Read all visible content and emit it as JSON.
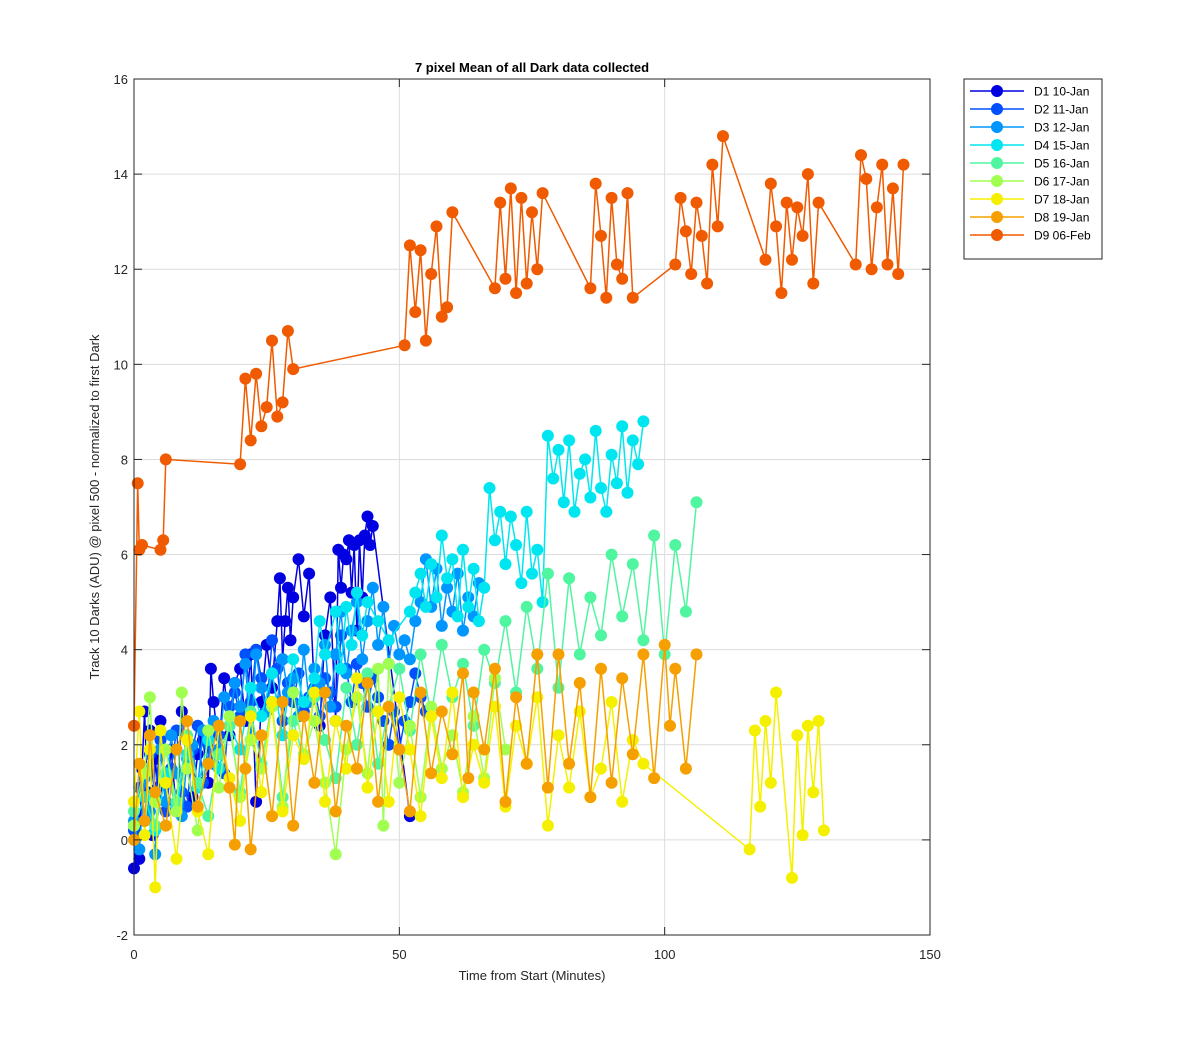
{
  "chart_data": {
    "type": "line",
    "title": "7 pixel Mean of all Dark data collected",
    "xlabel": "Time from Start (Minutes)",
    "ylabel": "Track 10 Darks (ADU) @ pixel 500 - normalized to first Dark",
    "xlim": [
      0,
      150
    ],
    "ylim": [
      -2,
      16
    ],
    "xticks": [
      0,
      50,
      100,
      150
    ],
    "yticks": [
      -2,
      0,
      2,
      4,
      6,
      8,
      10,
      12,
      14,
      16
    ],
    "grid": true,
    "legend_position": "outside-top-right",
    "series": [
      {
        "name": "D1 10-Jan",
        "color": "#0000e0",
        "x": [
          0,
          0.5,
          1,
          1.5,
          2,
          2.5,
          3,
          3.5,
          4,
          4.5,
          5,
          6,
          7,
          8,
          9,
          10,
          11,
          12,
          13,
          14,
          14.5,
          15,
          16,
          17,
          18,
          19,
          20,
          21,
          22,
          23,
          24,
          25,
          26,
          27,
          27.5,
          28,
          28.5,
          29,
          29.5,
          30,
          31,
          32,
          33,
          34,
          35,
          36,
          37,
          38,
          38.5,
          39,
          39.5,
          40,
          40.5,
          41,
          41.5,
          42,
          42.5,
          43,
          43.5,
          44,
          44.5,
          45,
          52
        ],
        "y": [
          -0.6,
          0.5,
          -0.4,
          1.5,
          2.7,
          1.0,
          2.3,
          0.1,
          1.7,
          1.1,
          2.5,
          0.8,
          1.9,
          0.6,
          2.7,
          1.5,
          0.9,
          1.8,
          2.1,
          1.2,
          3.6,
          2.9,
          1.9,
          3.4,
          2.2,
          3.3,
          3.6,
          2.5,
          3.9,
          0.8,
          2.9,
          4.1,
          3.2,
          4.6,
          5.5,
          3.8,
          4.6,
          5.3,
          4.2,
          5.1,
          5.9,
          4.7,
          5.6,
          3.1,
          2.4,
          4.3,
          5.1,
          2.5,
          6.1,
          5.3,
          6.0,
          5.9,
          6.3,
          5.2,
          6.2,
          4.4,
          6.3,
          5.1,
          6.4,
          6.8,
          6.2,
          6.6,
          0.5
        ]
      },
      {
        "name": "D2 11-Jan",
        "color": "#0050ff",
        "x": [
          0,
          1,
          2,
          3,
          4,
          5,
          6,
          7,
          8,
          9,
          10,
          11,
          12,
          13,
          14,
          15,
          16,
          17,
          18,
          19,
          20,
          21,
          22,
          23,
          24,
          25,
          26,
          27,
          28,
          29,
          30,
          31,
          32,
          33,
          34,
          35,
          36,
          37,
          38,
          39,
          40,
          41,
          42,
          43,
          44,
          45,
          46,
          47,
          48,
          49,
          50,
          51,
          52,
          53,
          54,
          55
        ],
        "y": [
          0.2,
          1.1,
          0.4,
          1.8,
          0.9,
          2.1,
          0.6,
          1.5,
          2.3,
          1.0,
          0.7,
          1.9,
          2.4,
          1.2,
          2.0,
          1.6,
          2.2,
          1.4,
          2.8,
          3.1,
          2.6,
          3.9,
          2.9,
          4.0,
          3.4,
          2.7,
          4.2,
          3.6,
          2.5,
          3.3,
          2.9,
          3.5,
          2.7,
          3.0,
          3.2,
          2.6,
          3.4,
          3.1,
          2.8,
          4.3,
          3.6,
          2.9,
          3.7,
          3.3,
          2.8,
          3.4,
          3.0,
          2.5,
          2.0,
          2.7,
          1.9,
          2.5,
          2.9,
          3.5,
          3.0,
          2.7
        ]
      },
      {
        "name": "D3 12-Jan",
        "color": "#0096ff",
        "x": [
          0,
          1,
          2,
          3,
          4,
          5,
          6,
          7,
          8,
          9,
          10,
          11,
          12,
          13,
          14,
          15,
          16,
          17,
          18,
          19,
          20,
          21,
          22,
          23,
          24,
          25,
          26,
          27,
          28,
          29,
          30,
          31,
          32,
          33,
          34,
          35,
          36,
          37,
          38,
          39,
          40,
          41,
          42,
          43,
          44,
          45,
          46,
          47,
          48,
          49,
          50,
          51,
          52,
          53,
          54,
          55,
          56,
          57,
          58,
          59,
          60,
          61,
          62,
          63,
          64,
          65
        ],
        "y": [
          0.4,
          -0.2,
          1.3,
          0.6,
          -0.3,
          1.9,
          0.8,
          2.2,
          1.4,
          0.5,
          1.7,
          2.0,
          1.1,
          2.3,
          1.6,
          2.5,
          1.9,
          3.0,
          2.4,
          3.3,
          2.8,
          3.7,
          2.1,
          3.9,
          3.2,
          2.7,
          3.5,
          2.9,
          3.8,
          3.1,
          3.4,
          2.6,
          4.0,
          2.9,
          3.6,
          3.3,
          4.1,
          2.8,
          3.9,
          4.8,
          3.5,
          4.4,
          5.0,
          3.8,
          4.6,
          5.3,
          4.1,
          4.9,
          3.7,
          4.5,
          3.9,
          4.2,
          3.8,
          4.6,
          5.0,
          5.9,
          4.9,
          5.7,
          4.5,
          5.3,
          4.8,
          5.6,
          4.4,
          5.1,
          4.7,
          5.4
        ]
      },
      {
        "name": "D4 15-Jan",
        "color": "#00e6f0",
        "x": [
          0,
          2,
          4,
          6,
          8,
          10,
          12,
          14,
          16,
          18,
          20,
          22,
          24,
          26,
          28,
          30,
          32,
          34,
          35,
          36,
          38,
          39,
          40,
          41,
          42,
          43,
          44,
          46,
          48,
          52,
          53,
          54,
          55,
          56,
          57,
          58,
          59,
          60,
          61,
          62,
          63,
          64,
          65,
          66,
          67,
          68,
          69,
          70,
          71,
          72,
          73,
          74,
          75,
          76,
          77,
          78,
          79,
          80,
          81,
          82,
          83,
          84,
          85,
          86,
          87,
          88,
          89,
          90,
          91,
          92,
          93,
          94,
          95,
          96
        ],
        "y": [
          0.3,
          0.9,
          0.2,
          1.4,
          0.7,
          1.8,
          1.1,
          2.1,
          1.5,
          2.4,
          1.9,
          3.2,
          2.6,
          3.5,
          2.2,
          3.8,
          2.9,
          3.4,
          4.6,
          3.9,
          4.8,
          3.6,
          4.9,
          4.1,
          5.2,
          4.3,
          5.0,
          4.6,
          4.2,
          4.8,
          5.2,
          5.6,
          4.9,
          5.8,
          5.1,
          6.4,
          5.5,
          5.9,
          4.7,
          6.1,
          4.9,
          5.7,
          4.6,
          5.3,
          7.4,
          6.3,
          6.9,
          5.8,
          6.8,
          6.2,
          5.4,
          6.9,
          5.6,
          6.1,
          5.0,
          8.5,
          7.6,
          8.2,
          7.1,
          8.4,
          6.9,
          7.7,
          8.0,
          7.2,
          8.6,
          7.4,
          6.9,
          8.1,
          7.5,
          8.7,
          7.3,
          8.4,
          7.9,
          8.8
        ]
      },
      {
        "name": "D5 16-Jan",
        "color": "#50f5a0",
        "x": [
          0,
          2,
          4,
          6,
          8,
          10,
          12,
          14,
          16,
          18,
          20,
          22,
          24,
          26,
          28,
          30,
          32,
          34,
          36,
          38,
          40,
          42,
          44,
          46,
          48,
          50,
          52,
          54,
          56,
          58,
          60,
          62,
          64,
          66,
          68,
          70,
          72,
          74,
          76,
          78,
          80,
          82,
          84,
          86,
          88,
          90,
          92,
          94,
          96,
          98,
          100,
          102,
          104,
          106
        ],
        "y": [
          0.6,
          1.5,
          0.3,
          1.9,
          0.8,
          2.2,
          1.2,
          0.5,
          1.8,
          2.4,
          1.0,
          2.7,
          1.6,
          2.9,
          0.9,
          2.5,
          1.7,
          3.0,
          2.1,
          1.3,
          3.2,
          2.0,
          3.5,
          1.6,
          2.8,
          3.6,
          2.3,
          3.9,
          2.6,
          4.1,
          3.0,
          3.7,
          2.4,
          4.0,
          3.3,
          4.6,
          3.1,
          4.9,
          3.6,
          5.6,
          3.2,
          5.5,
          3.9,
          5.1,
          4.3,
          6.0,
          4.7,
          5.8,
          4.2,
          6.4,
          3.9,
          6.2,
          4.8,
          7.1
        ]
      },
      {
        "name": "D6 17-Jan",
        "color": "#a0ff50",
        "x": [
          0,
          2,
          3,
          4,
          6,
          8,
          9,
          10,
          12,
          14,
          16,
          18,
          20,
          22,
          24,
          26,
          28,
          30,
          32,
          34,
          36,
          38,
          40,
          42,
          44,
          46,
          47,
          48,
          50,
          52,
          54,
          56,
          58,
          60,
          62,
          64,
          66,
          68,
          70
        ],
        "y": [
          0.3,
          1.4,
          3.0,
          0.8,
          1.9,
          0.6,
          3.1,
          1.5,
          0.2,
          2.3,
          1.1,
          2.6,
          0.9,
          2.1,
          1.5,
          2.8,
          0.7,
          3.1,
          1.8,
          2.5,
          1.2,
          -0.3,
          1.9,
          3.0,
          1.4,
          3.6,
          0.3,
          3.7,
          1.2,
          2.4,
          0.9,
          2.8,
          1.5,
          2.2,
          1.0,
          2.6,
          1.3,
          3.4,
          1.9
        ]
      },
      {
        "name": "D7 18-Jan",
        "color": "#f5f000",
        "x": [
          0,
          1,
          2,
          3,
          4,
          5,
          6,
          8,
          10,
          12,
          14,
          16,
          18,
          20,
          22,
          24,
          26,
          28,
          30,
          32,
          34,
          36,
          38,
          40,
          42,
          44,
          46,
          48,
          50,
          52,
          54,
          56,
          58,
          60,
          62,
          64,
          66,
          68,
          70,
          72,
          74,
          76,
          78,
          80,
          82,
          84,
          86,
          88,
          90,
          92,
          94,
          96,
          116,
          117,
          118,
          119,
          120,
          121,
          124,
          125,
          126,
          127,
          128,
          129,
          130
        ],
        "y": [
          0.8,
          2.7,
          0.1,
          1.9,
          -1.0,
          2.3,
          1.2,
          -0.4,
          2.1,
          0.6,
          -0.3,
          2.4,
          1.3,
          0.4,
          2.6,
          1.0,
          2.9,
          0.6,
          2.2,
          1.7,
          3.1,
          0.8,
          2.5,
          1.5,
          3.4,
          1.1,
          2.7,
          0.8,
          3.0,
          1.9,
          0.5,
          2.6,
          1.3,
          3.1,
          0.9,
          2.0,
          1.2,
          2.8,
          0.7,
          2.4,
          1.6,
          3.0,
          0.3,
          2.2,
          1.1,
          2.7,
          0.9,
          1.5,
          2.9,
          0.8,
          2.1,
          1.6,
          -0.2,
          2.3,
          0.7,
          2.5,
          1.2,
          3.1,
          -0.8,
          2.2,
          0.1,
          2.4,
          1.0,
          2.5,
          0.2
        ]
      },
      {
        "name": "D8 19-Jan",
        "color": "#f5a000",
        "x": [
          0,
          1,
          2,
          3,
          4,
          6,
          8,
          10,
          12,
          14,
          16,
          18,
          19,
          20,
          21,
          22,
          24,
          26,
          28,
          30,
          32,
          34,
          36,
          38,
          40,
          42,
          44,
          46,
          48,
          50,
          52,
          54,
          56,
          58,
          60,
          62,
          63,
          64,
          66,
          68,
          70,
          72,
          74,
          76,
          78,
          80,
          82,
          84,
          86,
          88,
          90,
          92,
          94,
          96,
          98,
          100,
          101,
          102,
          104,
          106
        ],
        "y": [
          0.0,
          1.6,
          0.4,
          2.2,
          1.0,
          0.3,
          1.9,
          2.5,
          0.7,
          1.6,
          2.4,
          1.1,
          -0.1,
          2.5,
          1.5,
          -0.2,
          2.2,
          0.5,
          2.9,
          0.3,
          2.6,
          1.2,
          3.1,
          0.6,
          2.4,
          1.5,
          3.3,
          0.8,
          2.8,
          1.9,
          0.6,
          3.1,
          1.4,
          2.7,
          1.8,
          3.5,
          1.3,
          3.1,
          1.9,
          3.6,
          0.8,
          3.0,
          1.6,
          3.9,
          1.1,
          3.9,
          1.6,
          3.3,
          0.9,
          3.6,
          1.2,
          3.4,
          1.8,
          3.9,
          1.3,
          4.1,
          2.4,
          3.6,
          1.5,
          3.9
        ]
      },
      {
        "name": "D9 06-Feb",
        "color": "#f05a00",
        "x": [
          0,
          0.7,
          1,
          1.5,
          5,
          5.5,
          6,
          20,
          21,
          22,
          23,
          24,
          25,
          26,
          27,
          28,
          29,
          30,
          51,
          52,
          53,
          54,
          55,
          56,
          57,
          58,
          59,
          60,
          68,
          69,
          70,
          71,
          72,
          73,
          74,
          75,
          76,
          77,
          86,
          87,
          88,
          89,
          90,
          91,
          92,
          93,
          94,
          102,
          103,
          104,
          105,
          106,
          107,
          108,
          109,
          110,
          111,
          119,
          120,
          121,
          122,
          123,
          124,
          125,
          126,
          127,
          128,
          129,
          136,
          137,
          138,
          139,
          140,
          141,
          142,
          143,
          144,
          145
        ],
        "y": [
          2.4,
          7.5,
          6.1,
          6.2,
          6.1,
          6.3,
          8.0,
          7.9,
          9.7,
          8.4,
          9.8,
          8.7,
          9.1,
          10.5,
          8.9,
          9.2,
          10.7,
          9.9,
          10.4,
          12.5,
          11.1,
          12.4,
          10.5,
          11.9,
          12.9,
          11.0,
          11.2,
          13.2,
          11.6,
          13.4,
          11.8,
          13.7,
          11.5,
          13.5,
          11.7,
          13.2,
          12.0,
          13.6,
          11.6,
          13.8,
          12.7,
          11.4,
          13.5,
          12.1,
          11.8,
          13.6,
          11.4,
          12.1,
          13.5,
          12.8,
          11.9,
          13.4,
          12.7,
          11.7,
          14.2,
          12.9,
          14.8,
          12.2,
          13.8,
          12.9,
          11.5,
          13.4,
          12.2,
          13.3,
          12.7,
          14.0,
          11.7,
          13.4,
          12.1,
          14.4,
          13.9,
          12.0,
          13.3,
          14.2,
          12.1,
          13.7,
          11.9,
          14.2
        ]
      }
    ]
  }
}
